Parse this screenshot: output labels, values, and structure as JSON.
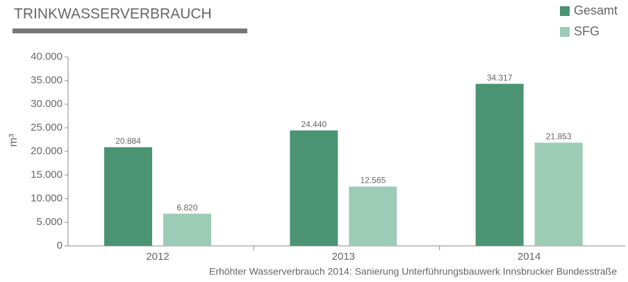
{
  "chart_data": {
    "type": "bar",
    "title": "TRINKWASSERVERBRAUCH",
    "y_label": "m³",
    "note": "Erhöhter Wasserverbrauch 2014: Sanierung Unterführungsbauwerk Innsbrucker Bundesstraße",
    "categories": [
      "2012",
      "2013",
      "2014"
    ],
    "series": [
      {
        "name": "Gesamt",
        "color": "#4a9473",
        "values": [
          20884,
          24440,
          34317
        ],
        "value_labels": [
          "20.884",
          "24.440",
          "34.317"
        ]
      },
      {
        "name": "SFG",
        "color": "#9ccbb6",
        "values": [
          6820,
          12565,
          21853
        ],
        "value_labels": [
          "6.820",
          "12.565",
          "21.853"
        ]
      }
    ],
    "ylim": [
      0,
      40000
    ],
    "yticks": [
      0,
      {
        "value": 5000,
        "label": "5.000"
      },
      {
        "value": 10000,
        "label": "10.000"
      },
      {
        "value": 15000,
        "label": "15.000"
      },
      {
        "value": 20000,
        "label": "20.000"
      },
      {
        "value": 25000,
        "label": "25.000"
      },
      {
        "value": 30000,
        "label": "30.000"
      },
      {
        "value": 35000,
        "label": "35.000"
      },
      {
        "value": 40000,
        "label": "40.000"
      }
    ],
    "legend": "top-right"
  }
}
